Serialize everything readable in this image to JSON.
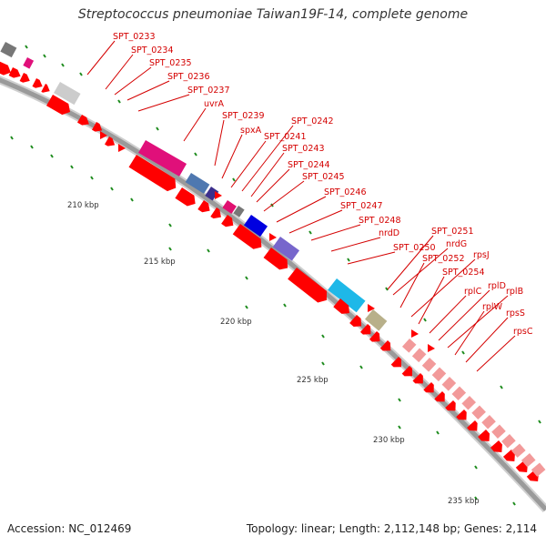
{
  "title": "Streptococcus pneumoniae Taiwan19F-14, complete genome",
  "footer": {
    "accession": "Accession: NC_012469",
    "summary": "Topology: linear; Length: 2,112,148 bp; Genes: 2,114"
  },
  "colors": {
    "gene_label": "#d40000",
    "cds": "#ff0000",
    "backbone": "#9a9a9a",
    "tick": "#1e8c1e"
  },
  "scale_labels": [
    "210 kbp",
    "215 kbp",
    "220 kbp",
    "225 kbp",
    "230 kbp",
    "235 kbp"
  ],
  "gene_labels": [
    "SPT_0233",
    "SPT_0234",
    "SPT_0235",
    "SPT_0236",
    "SPT_0237",
    "uvrA",
    "SPT_0239",
    "spxA",
    "SPT_0241",
    "SPT_0242",
    "SPT_0243",
    "SPT_0244",
    "SPT_0245",
    "SPT_0246",
    "SPT_0247",
    "SPT_0248",
    "nrdD",
    "SPT_0250",
    "SPT_0251",
    "nrdG",
    "SPT_0252",
    "rpsJ",
    "SPT_0254",
    "rplC",
    "rplD",
    "rplB",
    "rplW",
    "rpsS",
    "rpsC"
  ]
}
